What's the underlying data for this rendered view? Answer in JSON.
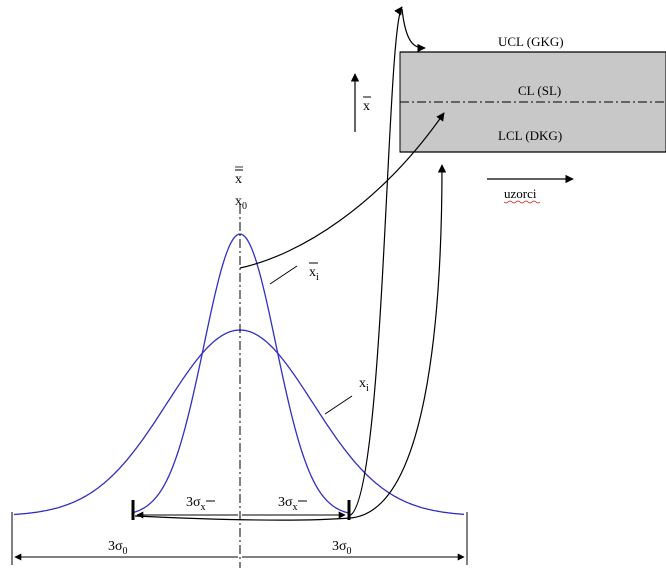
{
  "chart": {
    "ucl": "UCL (GKG)",
    "cl": "CL (SL)",
    "lcl": "LCL (DKG)",
    "xaxis": "uzorci",
    "yaxis": "x"
  },
  "labels": {
    "xbar_top": "x",
    "x0_base": "x",
    "x0_sub": "0",
    "xi_bar_base": "x",
    "xi_bar_sub": "i",
    "xi_base": "x",
    "xi_sub": "i"
  },
  "dimensions": {
    "left_inner_base": "3σ",
    "left_inner_sub": "x",
    "right_inner_base": "3σ",
    "right_inner_sub": "x",
    "left_outer_base": "3σ",
    "left_outer_sub": "0",
    "right_outer_base": "3σ",
    "right_outer_sub": "0"
  },
  "colors": {
    "curve": "#3030c0",
    "chart_fill": "#c8c8c8",
    "line": "#000000"
  }
}
